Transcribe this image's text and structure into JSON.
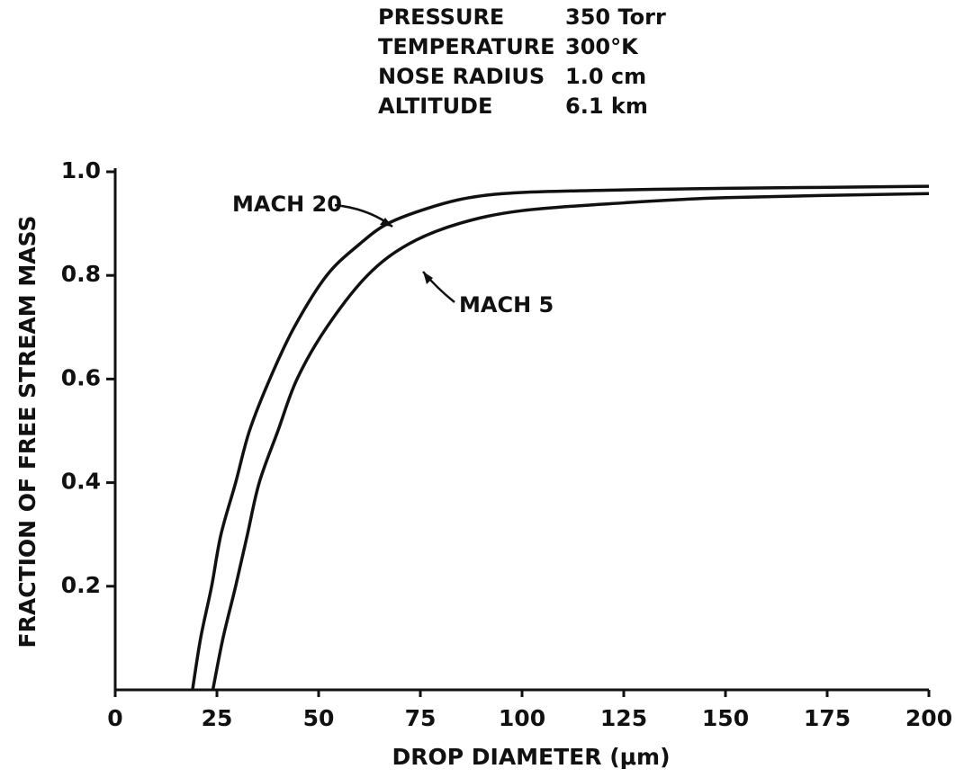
{
  "chart_data": {
    "type": "line",
    "parameters": [
      {
        "label": "PRESSURE",
        "value": "350 Torr"
      },
      {
        "label": "TEMPERATURE",
        "value": "300°K"
      },
      {
        "label": "NOSE RADIUS",
        "value": "1.0 cm"
      },
      {
        "label": "ALTITUDE",
        "value": "6.1 km"
      }
    ],
    "x_label": "DROP DIAMETER (μm)",
    "y_label": "FRACTION OF FREE STREAM MASS",
    "xlim": [
      0,
      200
    ],
    "ylim": [
      0,
      1
    ],
    "xticks": [
      0,
      25,
      50,
      75,
      100,
      125,
      150,
      175,
      200
    ],
    "yticks": [
      0.2,
      0.4,
      0.6,
      0.8,
      {
        "value": 1,
        "label": "1.0"
      }
    ],
    "series": [
      {
        "name": "MACH 20",
        "color": "#111111",
        "x": [
          19,
          21,
          23.7,
          26,
          29.6,
          33,
          38,
          44,
          52,
          60,
          67,
          77,
          87,
          100,
          125,
          150,
          200
        ],
        "values": [
          0,
          0.1,
          0.2,
          0.3,
          0.4,
          0.5,
          0.6,
          0.7,
          0.8,
          0.86,
          0.9,
          0.93,
          0.95,
          0.96,
          0.965,
          0.968,
          0.972
        ]
      },
      {
        "name": "MACH 5",
        "color": "#111111",
        "x": [
          24,
          26.5,
          29.6,
          32.5,
          35.4,
          40,
          44.7,
          52,
          62,
          72,
          84.5,
          100,
          125,
          150,
          200
        ],
        "values": [
          0,
          0.1,
          0.2,
          0.3,
          0.4,
          0.5,
          0.6,
          0.7,
          0.8,
          0.86,
          0.9,
          0.925,
          0.94,
          0.95,
          0.958
        ]
      }
    ]
  }
}
